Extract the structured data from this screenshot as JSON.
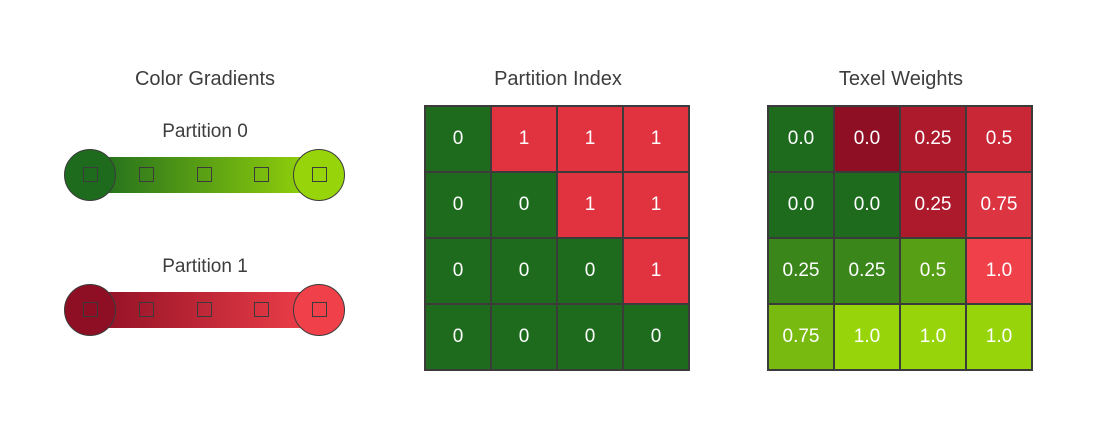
{
  "colors": {
    "p0_start": "#1e6b1e",
    "p0_end": "#97d50a",
    "p1_start": "#8e0f24",
    "p1_end": "#f0404a",
    "partition0": "#1e6b1e",
    "partition1": "#e0333f"
  },
  "titles": {
    "gradients": "Color Gradients",
    "partition": "Partition Index",
    "weights": "Texel Weights"
  },
  "gradients": [
    {
      "label": "Partition 0",
      "start": "#1e6b1e",
      "end": "#97d50a"
    },
    {
      "label": "Partition 1",
      "start": "#8e0f24",
      "end": "#f0404a"
    }
  ],
  "partition_index": [
    [
      "0",
      "1",
      "1",
      "1"
    ],
    [
      "0",
      "0",
      "1",
      "1"
    ],
    [
      "0",
      "0",
      "0",
      "1"
    ],
    [
      "0",
      "0",
      "0",
      "0"
    ]
  ],
  "texel_weights": [
    [
      "0.0",
      "0.0",
      "0.25",
      "0.5"
    ],
    [
      "0.0",
      "0.0",
      "0.25",
      "0.75"
    ],
    [
      "0.25",
      "0.25",
      "0.5",
      "1.0"
    ],
    [
      "0.75",
      "1.0",
      "1.0",
      "1.0"
    ]
  ],
  "texel_colors": [
    [
      "#1e6b1e",
      "#8e0f24",
      "#ad1a2c",
      "#c92636"
    ],
    [
      "#1e6b1e",
      "#1e6b1e",
      "#ad1a2c",
      "#dc3441"
    ],
    [
      "#3a861a",
      "#3a861a",
      "#579f14",
      "#f0404a"
    ],
    [
      "#79ba10",
      "#97d50a",
      "#97d50a",
      "#97d50a"
    ]
  ]
}
